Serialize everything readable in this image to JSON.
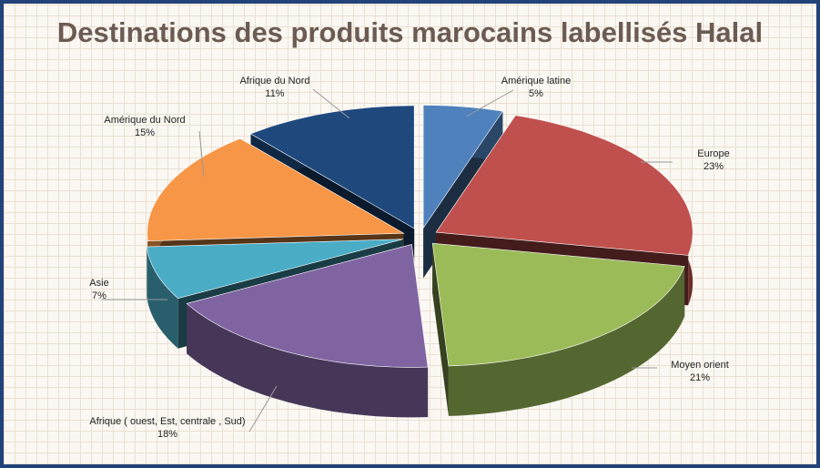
{
  "chart_data": {
    "type": "pie",
    "title": "Destinations des produits marocains labellisés Halal",
    "categories": [
      "Amérique latine",
      "Europe",
      "Moyen orient",
      "Afrique ( ouest, Est, centrale , Sud)",
      "Asie",
      "Amérique du Nord",
      "Afrique du Nord"
    ],
    "values": [
      5,
      23,
      21,
      18,
      7,
      15,
      11
    ],
    "value_labels": [
      "5%",
      "23%",
      "21%",
      "18%",
      "7%",
      "15%",
      "11%"
    ],
    "colors": [
      "#4f81bd",
      "#c0504d",
      "#9bbb59",
      "#8064a2",
      "#4bacc6",
      "#f79646",
      "#1f497d"
    ]
  }
}
